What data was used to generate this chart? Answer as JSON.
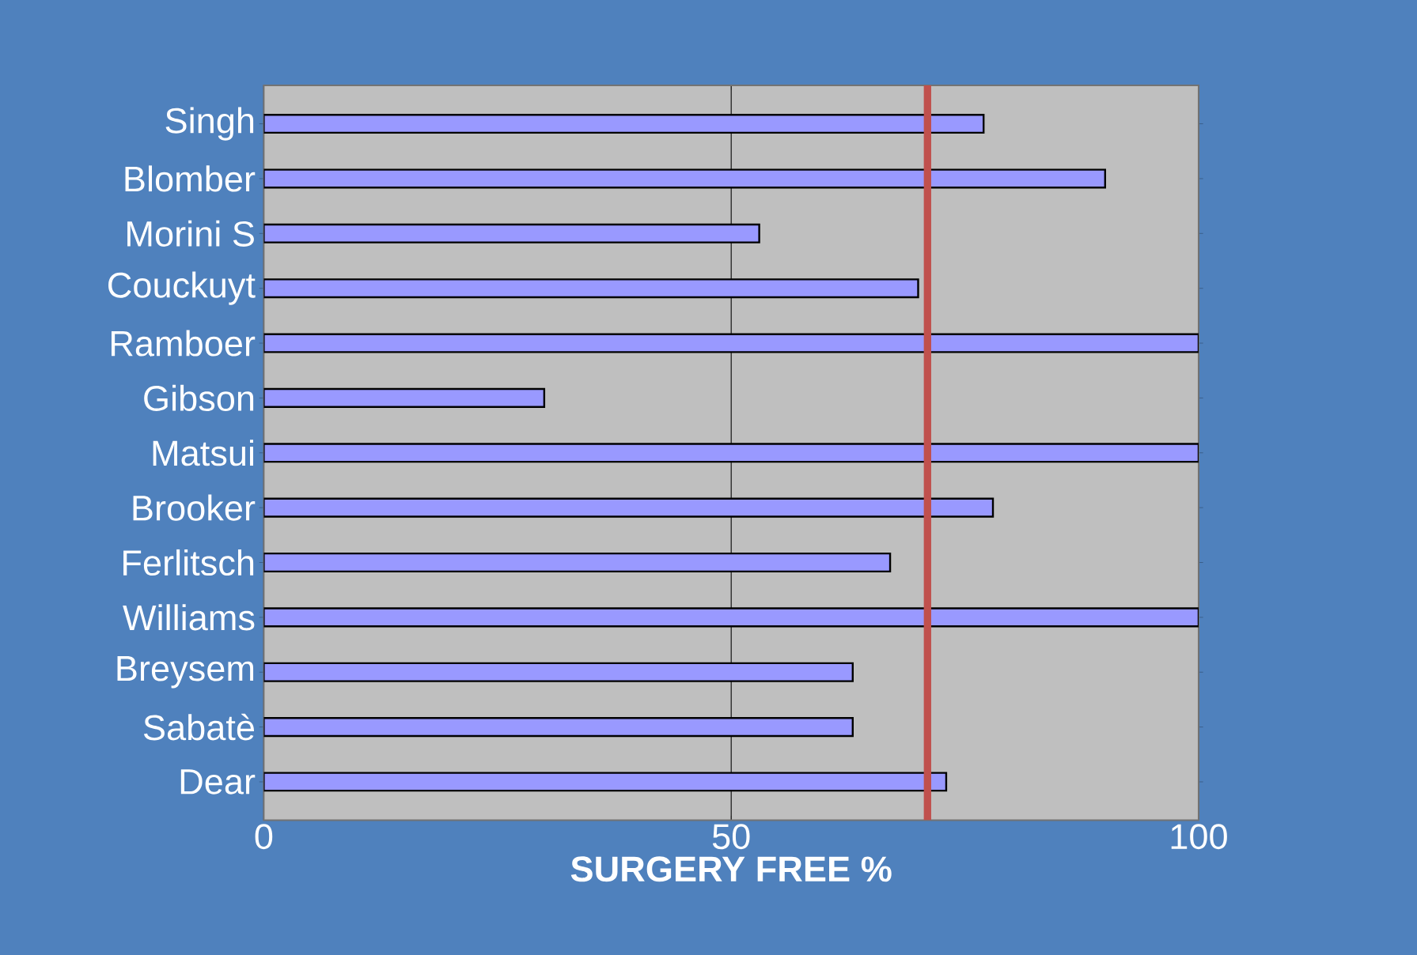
{
  "chart_data": {
    "type": "bar",
    "orientation": "horizontal",
    "categories": [
      "Singh",
      "Blomber",
      "Morini S",
      "Couckuyt",
      "Ramboer",
      "Gibson",
      "Matsui",
      "Brooker",
      "Ferlitsch",
      "Williams",
      "Breysem",
      "Sabatè",
      "Dear"
    ],
    "values": [
      77,
      90,
      53,
      70,
      100,
      30,
      100,
      78,
      67,
      100,
      63,
      63,
      73
    ],
    "color": "#9999ff",
    "xlim": [
      0,
      100
    ],
    "xticks": [
      0,
      50,
      100
    ],
    "grid": "x",
    "xlabel": "SURGERY FREE %",
    "ref_lines": [
      {
        "axis": "x",
        "value": 71,
        "color": "#c0504d"
      }
    ]
  }
}
